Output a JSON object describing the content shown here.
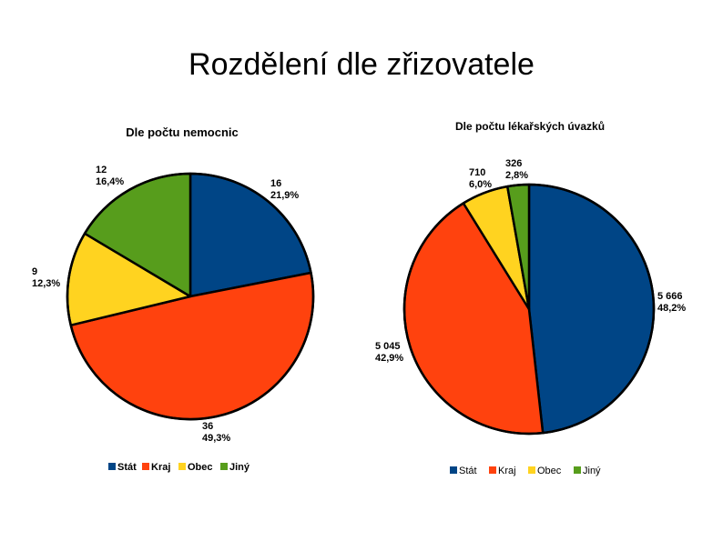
{
  "page_title": "Rozdělení dle zřizovatele",
  "colors": {
    "stat": "#004586",
    "kraj": "#ff420e",
    "obec": "#ffd320",
    "jiny": "#579d1c"
  },
  "chart_data": [
    {
      "type": "pie",
      "title": "Dle počtu nemocnic",
      "legend_position": "bottom",
      "slices": [
        {
          "name": "Stát",
          "value": 16,
          "percent": "21,9%",
          "value_label": "16",
          "color": "#004586"
        },
        {
          "name": "Kraj",
          "value": 36,
          "percent": "49,3%",
          "value_label": "36",
          "color": "#ff420e"
        },
        {
          "name": "Obec",
          "value": 9,
          "percent": "12,3%",
          "value_label": "9",
          "color": "#ffd320"
        },
        {
          "name": "Jiný",
          "value": 12,
          "percent": "16,4%",
          "value_label": "12",
          "color": "#579d1c"
        }
      ]
    },
    {
      "type": "pie",
      "title": "Dle počtu lékařských úvazků",
      "legend_position": "bottom",
      "slices": [
        {
          "name": "Stát",
          "value": 5666,
          "percent": "48,2%",
          "value_label": "5 666",
          "color": "#004586"
        },
        {
          "name": "Kraj",
          "value": 5045,
          "percent": "42,9%",
          "value_label": "5 045",
          "color": "#ff420e"
        },
        {
          "name": "Obec",
          "value": 710,
          "percent": "6,0%",
          "value_label": "710",
          "color": "#ffd320"
        },
        {
          "name": "Jiný",
          "value": 326,
          "percent": "2,8%",
          "value_label": "326",
          "color": "#579d1c"
        }
      ]
    }
  ]
}
